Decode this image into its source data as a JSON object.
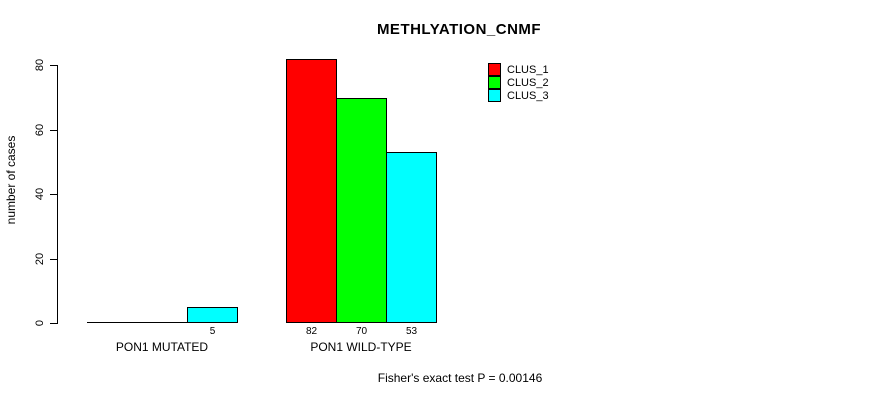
{
  "chart_data": {
    "type": "bar",
    "title": "METHLYATION_CNMF",
    "ylabel": "number of cases",
    "xlabel": "",
    "annotation": "Fisher's exact test P = 0.00146",
    "categories": [
      "PON1 MUTATED",
      "PON1 WILD-TYPE"
    ],
    "series": [
      {
        "name": "CLUS_1",
        "color": "#ff0000",
        "values": [
          0,
          82
        ]
      },
      {
        "name": "CLUS_2",
        "color": "#00ff00",
        "values": [
          0,
          70
        ]
      },
      {
        "name": "CLUS_3",
        "color": "#00ffff",
        "values": [
          5,
          53
        ]
      }
    ],
    "bar_value_labels": [
      [
        null,
        null,
        "5"
      ],
      [
        "82",
        "70",
        "53"
      ]
    ],
    "yticks": [
      0,
      20,
      40,
      60,
      80
    ],
    "ylim": [
      0,
      82
    ],
    "grid": false,
    "legend_position": "top-right",
    "legend": [
      {
        "label": "CLUS_1",
        "color": "#ff0000"
      },
      {
        "label": "CLUS_2",
        "color": "#00ff00"
      },
      {
        "label": "CLUS_3",
        "color": "#00ffff"
      }
    ],
    "axis_color": "#000000",
    "background_color": "#ffffff"
  }
}
